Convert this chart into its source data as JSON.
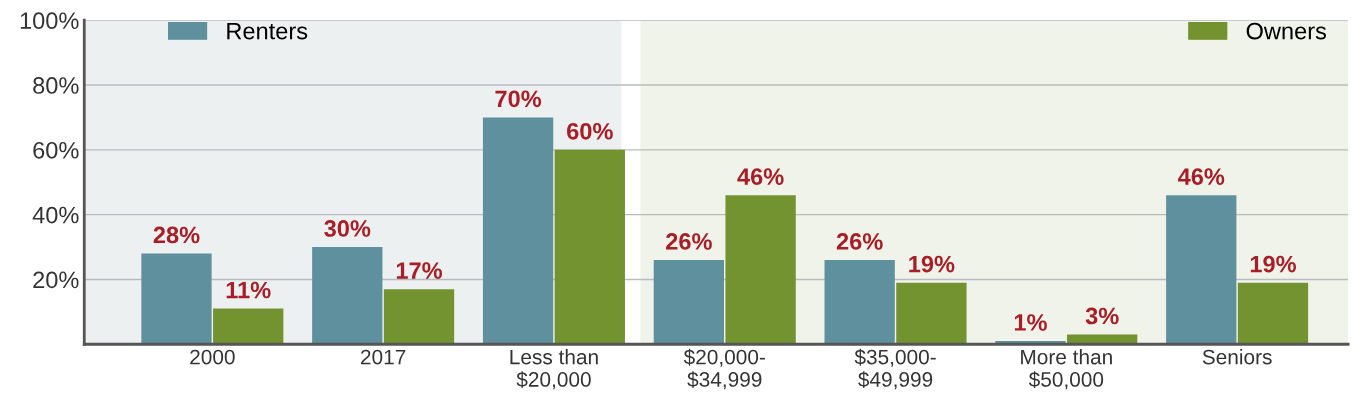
{
  "chart_data": {
    "type": "bar",
    "categories": [
      "2000",
      "2017",
      "Less than\n$20,000",
      "$20,000-\n$34,999",
      "$35,000-\n$49,999",
      "More than\n$50,000",
      "Seniors"
    ],
    "series": [
      {
        "name": "Renters",
        "color": "#5f909e",
        "values": [
          28,
          30,
          70,
          26,
          26,
          1,
          46
        ],
        "value_labels": [
          "28%",
          "30%",
          "70%",
          "26%",
          "26%",
          "1%",
          "46%"
        ]
      },
      {
        "name": "Owners",
        "color": "#739230",
        "values": [
          11,
          17,
          60,
          46,
          19,
          3,
          19
        ],
        "value_labels": [
          "11%",
          "17%",
          "60%",
          "46%",
          "19%",
          "3%",
          "19%"
        ]
      }
    ],
    "ylim": [
      0,
      100
    ],
    "yticks": [
      {
        "value": 20,
        "label": "20%"
      },
      {
        "value": 40,
        "label": "40%"
      },
      {
        "value": 60,
        "label": "60%"
      },
      {
        "value": 80,
        "label": "80%"
      },
      {
        "value": 100,
        "label": "100%"
      }
    ],
    "grid": "y",
    "legend": "top"
  }
}
